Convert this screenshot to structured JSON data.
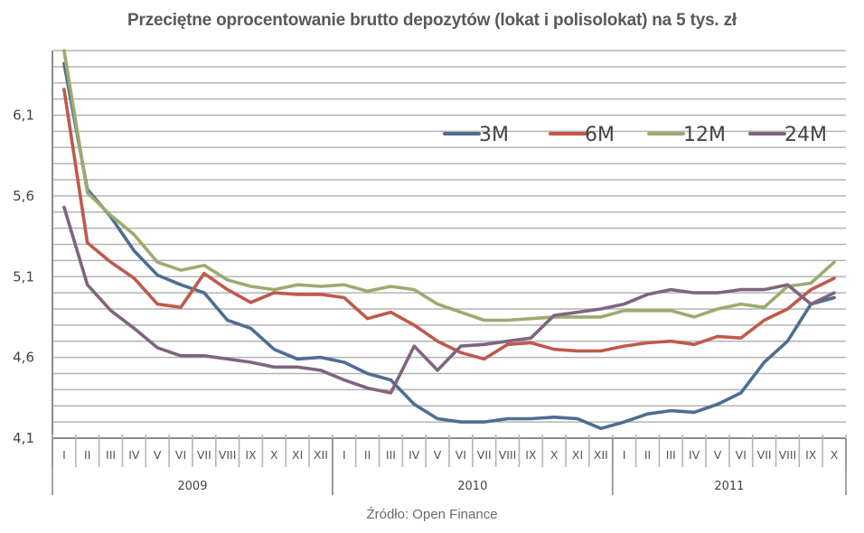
{
  "title": "Przeciętne oprocentowanie brutto depozytów (lokat i polisolokat) na 5 tys. zł",
  "source": "Źródło: Open Finance",
  "colors": {
    "3M": "#4f6d93",
    "6M": "#c0594a",
    "12M": "#9cab6e",
    "24M": "#80647f",
    "grid": "#b4b4b4",
    "axis": "#8c8c8c"
  },
  "chart_data": {
    "type": "line",
    "title": "Przeciętne oprocentowanie brutto depozytów (lokat i polisolokat) na 5 tys. zł",
    "xlabel": "",
    "ylabel": "",
    "ylim": [
      4.1,
      6.5
    ],
    "yticks": [
      "4,1",
      "4,6",
      "5,1",
      "5,6",
      "6,1"
    ],
    "ytick_values": [
      4.1,
      4.6,
      5.1,
      5.6,
      6.1
    ],
    "minor_grid_step": 0.1,
    "grid": true,
    "legend_position": "upper-right inside",
    "year_groups": [
      {
        "label": "2009",
        "count": 12
      },
      {
        "label": "2010",
        "count": 12
      },
      {
        "label": "2011",
        "count": 10
      }
    ],
    "categories": [
      "I",
      "II",
      "III",
      "IV",
      "V",
      "VI",
      "VII",
      "VIII",
      "IX",
      "X",
      "XI",
      "XII",
      "I",
      "II",
      "III",
      "IV",
      "V",
      "VI",
      "VII",
      "VIII",
      "IX",
      "X",
      "XI",
      "XII",
      "I",
      "II",
      "III",
      "IV",
      "V",
      "VI",
      "VII",
      "VIII",
      "IX",
      "X"
    ],
    "series": [
      {
        "name": "3M",
        "values": [
          6.42,
          5.64,
          5.47,
          5.26,
          5.11,
          5.05,
          5.0,
          4.83,
          4.78,
          4.65,
          4.59,
          4.6,
          4.57,
          4.5,
          4.46,
          4.31,
          4.22,
          4.2,
          4.2,
          4.22,
          4.22,
          4.23,
          4.22,
          4.16,
          4.2,
          4.25,
          4.27,
          4.26,
          4.31,
          4.38,
          4.57,
          4.7,
          4.93,
          4.97
        ]
      },
      {
        "name": "6M",
        "values": [
          6.26,
          5.31,
          5.19,
          5.09,
          4.93,
          4.91,
          5.12,
          5.02,
          4.94,
          5.0,
          4.99,
          4.99,
          4.97,
          4.84,
          4.88,
          4.8,
          4.7,
          4.63,
          4.59,
          4.68,
          4.69,
          4.65,
          4.64,
          4.64,
          4.67,
          4.69,
          4.7,
          4.68,
          4.73,
          4.72,
          4.83,
          4.9,
          5.02,
          5.09
        ]
      },
      {
        "name": "12M",
        "values": [
          6.5,
          5.62,
          5.48,
          5.36,
          5.19,
          5.14,
          5.17,
          5.08,
          5.04,
          5.02,
          5.05,
          5.04,
          5.05,
          5.01,
          5.04,
          5.02,
          4.93,
          4.88,
          4.83,
          4.83,
          4.84,
          4.85,
          4.85,
          4.85,
          4.89,
          4.89,
          4.89,
          4.85,
          4.9,
          4.93,
          4.91,
          5.04,
          5.06,
          5.19
        ]
      },
      {
        "name": "24M",
        "values": [
          5.53,
          5.05,
          4.89,
          4.78,
          4.66,
          4.61,
          4.61,
          4.59,
          4.57,
          4.54,
          4.54,
          4.52,
          4.46,
          4.41,
          4.38,
          4.67,
          4.52,
          4.67,
          4.68,
          4.7,
          4.72,
          4.86,
          4.88,
          4.9,
          4.93,
          4.99,
          5.02,
          5.0,
          5.0,
          5.02,
          5.02,
          5.05,
          4.93,
          5.0
        ]
      }
    ]
  }
}
